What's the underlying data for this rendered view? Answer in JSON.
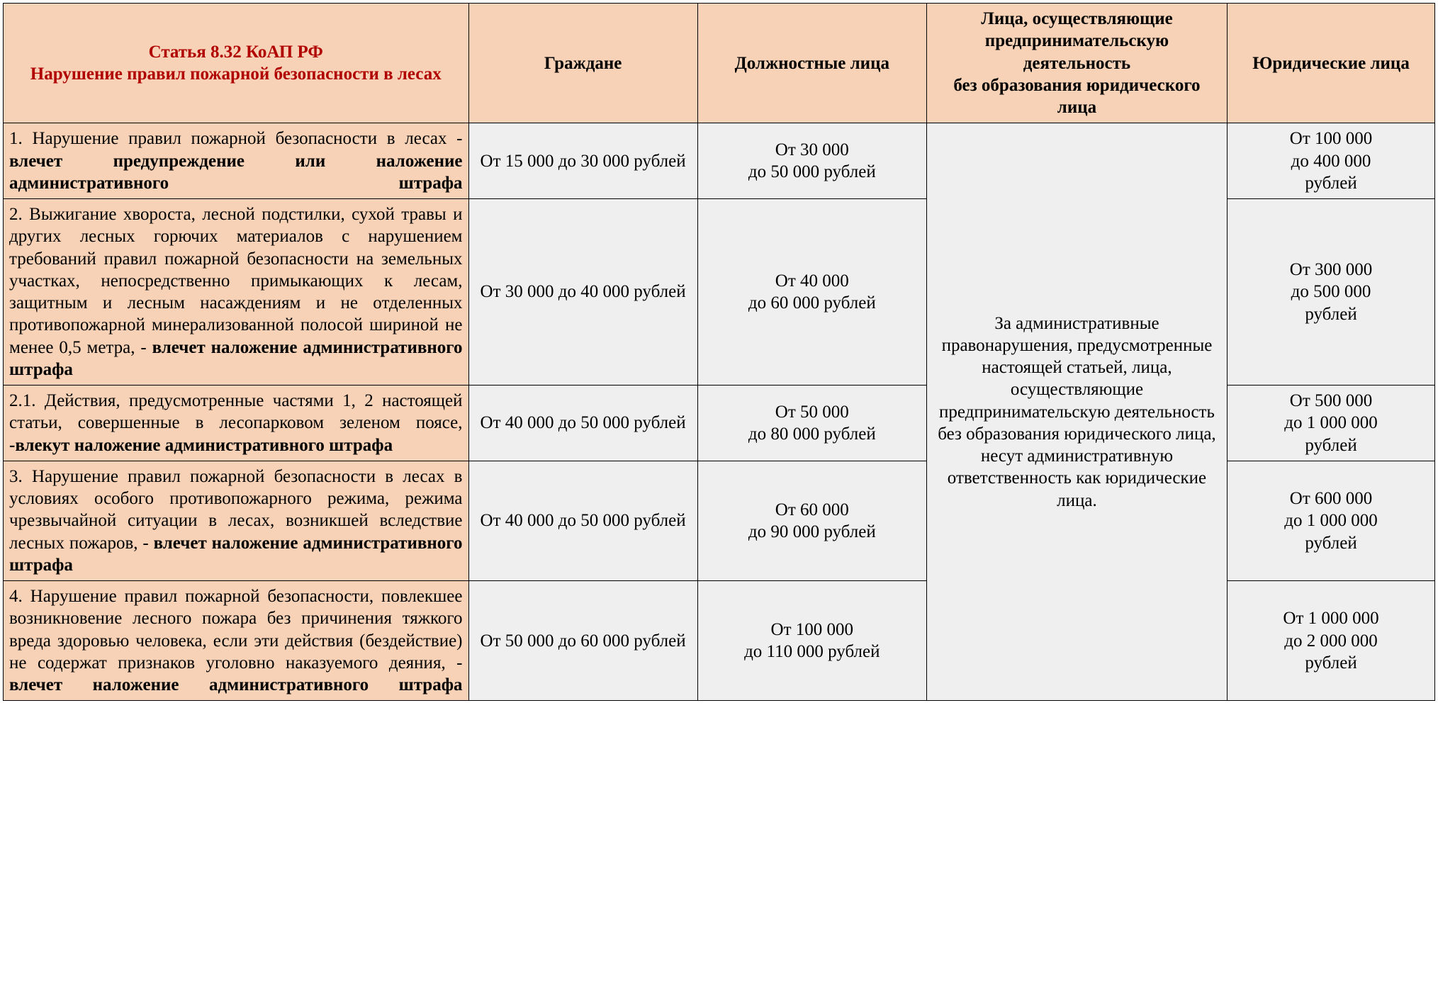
{
  "colors": {
    "header_bg": "#f7d2b6",
    "value_bg": "#efefef",
    "title_text": "#b00000",
    "border": "#000000",
    "text": "#000000"
  },
  "typography": {
    "family": "Times New Roman",
    "base_size_pt": 19
  },
  "header": {
    "title_line1": "Статья 8.32 КоАП РФ",
    "title_line2": "Нарушение правил пожарной безопасности в лесах",
    "col_citizens": "Граждане",
    "col_officials": "Должностные лица",
    "col_entrepreneurs_l1": "Лица, осуществляющие предпринимательскую деятельность",
    "col_entrepreneurs_l2": "без образования юридического лица",
    "col_legal": "Юридические лица"
  },
  "merged_entrepreneurs_text": "За административные правонарушения, предусмотренные настоящей статьей, лица, осуществляющие предпринимательскую деятельность без образования юридического лица, несут административную ответственность как юридические лица.",
  "rows": [
    {
      "desc_plain": "1. Нарушение правил пожарной безопасности в лесах - ",
      "desc_bold": "влечет предупреждение или наложение административного штрафа",
      "citizens": "От 15 000 до 30 000 рублей",
      "officials_l1": "От 30 000",
      "officials_l2": "до 50 000 рублей",
      "legal_l1": "От 100 000",
      "legal_l2": "до 400 000",
      "legal_l3": "рублей"
    },
    {
      "desc_plain": "2. Выжигание хвороста, лесной подстилки, сухой травы и других лесных горючих материалов с нарушением требований правил пожарной безопасности на земельных участках, непосредственно примыкающих к лесам, защитным и лесным насаждениям и не отделенных противопожарной минерализованной полосой шириной не менее 0,5 метра, - ",
      "desc_bold": "влечет наложение административного штрафа",
      "citizens": "От 30 000 до 40 000 рублей",
      "officials_l1": "От 40 000",
      "officials_l2": "до 60 000 рублей",
      "legal_l1": "От 300 000",
      "legal_l2": "до 500 000",
      "legal_l3": "рублей"
    },
    {
      "desc_plain": "2.1. Действия, предусмотренные частями 1, 2 настоящей статьи, совершенные в лесопарковом зеленом поясе, ",
      "desc_bold": "-влекут наложение административного штрафа",
      "citizens": "От 40 000 до 50 000 рублей",
      "officials_l1": "От 50 000",
      "officials_l2": "до 80 000 рублей",
      "legal_l1": "От 500 000",
      "legal_l2": "до 1 000 000",
      "legal_l3": "рублей"
    },
    {
      "desc_plain": "3. Нарушение правил пожарной безопасности в лесах в условиях особого противопожарного режима, режима чрезвычайной ситуации в лесах, возникшей вследствие лесных пожаров, - ",
      "desc_bold": "влечет наложение административного штрафа",
      "citizens": "От 40 000 до 50 000 рублей",
      "officials_l1": "От 60 000",
      "officials_l2": "до 90 000 рублей",
      "legal_l1": "От 600 000",
      "legal_l2": "до 1 000 000",
      "legal_l3": "рублей"
    },
    {
      "desc_plain": "4. Нарушение правил пожарной безопасности, повлекшее возникновение лесного пожара без причинения тяжкого вреда здоровью человека, если эти действия (бездействие) не содержат признаков уголовно наказуемого деяния, - ",
      "desc_bold": "влечет наложение административного штрафа",
      "citizens": "От 50 000 до 60 000 рублей",
      "officials_l1": "От 100 000",
      "officials_l2": "до 110 000 рублей",
      "legal_l1": "От 1 000 000",
      "legal_l2": "до 2 000 000",
      "legal_l3": "рублей"
    }
  ]
}
